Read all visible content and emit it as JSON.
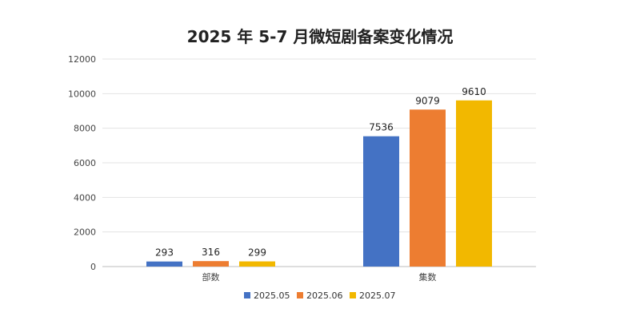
{
  "chart_data": {
    "type": "bar",
    "title": "2025 年 5-7 月微短剧备案变化情况",
    "xlabel": "",
    "ylabel": "",
    "categories": [
      "部数",
      "集数"
    ],
    "series": [
      {
        "name": "2025.05",
        "color": "#4472C4",
        "values": [
          293,
          7536
        ]
      },
      {
        "name": "2025.06",
        "color": "#ED7D31",
        "values": [
          316,
          9079
        ]
      },
      {
        "name": "2025.07",
        "color": "#F2B800",
        "values": [
          299,
          9610
        ]
      }
    ],
    "ylim": [
      0,
      12000
    ],
    "yticks": [
      0,
      2000,
      4000,
      6000,
      8000,
      10000,
      12000
    ],
    "grid": true,
    "legend_position": "bottom"
  }
}
